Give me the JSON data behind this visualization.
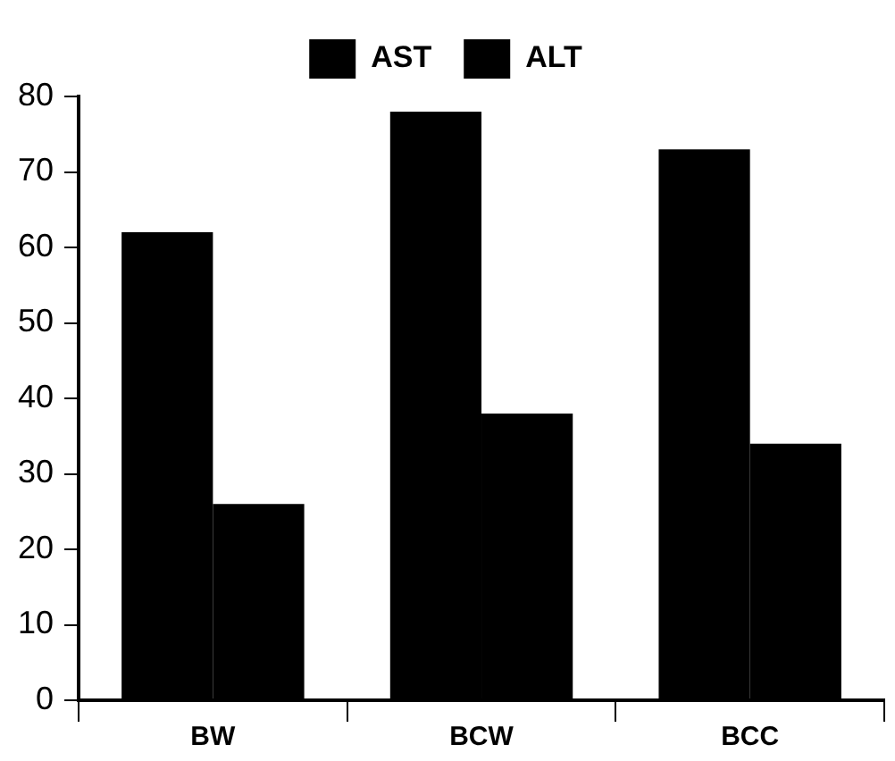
{
  "chart_data": {
    "type": "bar",
    "categories": [
      "BW",
      "BCW",
      "BCC"
    ],
    "series": [
      {
        "name": "AST",
        "color": "#000000",
        "values": [
          62,
          78,
          73
        ]
      },
      {
        "name": "ALT",
        "color": "#000000",
        "values": [
          26,
          38,
          34
        ]
      }
    ],
    "ylim": [
      0,
      80
    ],
    "yticks": [
      0,
      10,
      20,
      30,
      40,
      50,
      60,
      70,
      80
    ],
    "grid": false,
    "legend": "top"
  }
}
